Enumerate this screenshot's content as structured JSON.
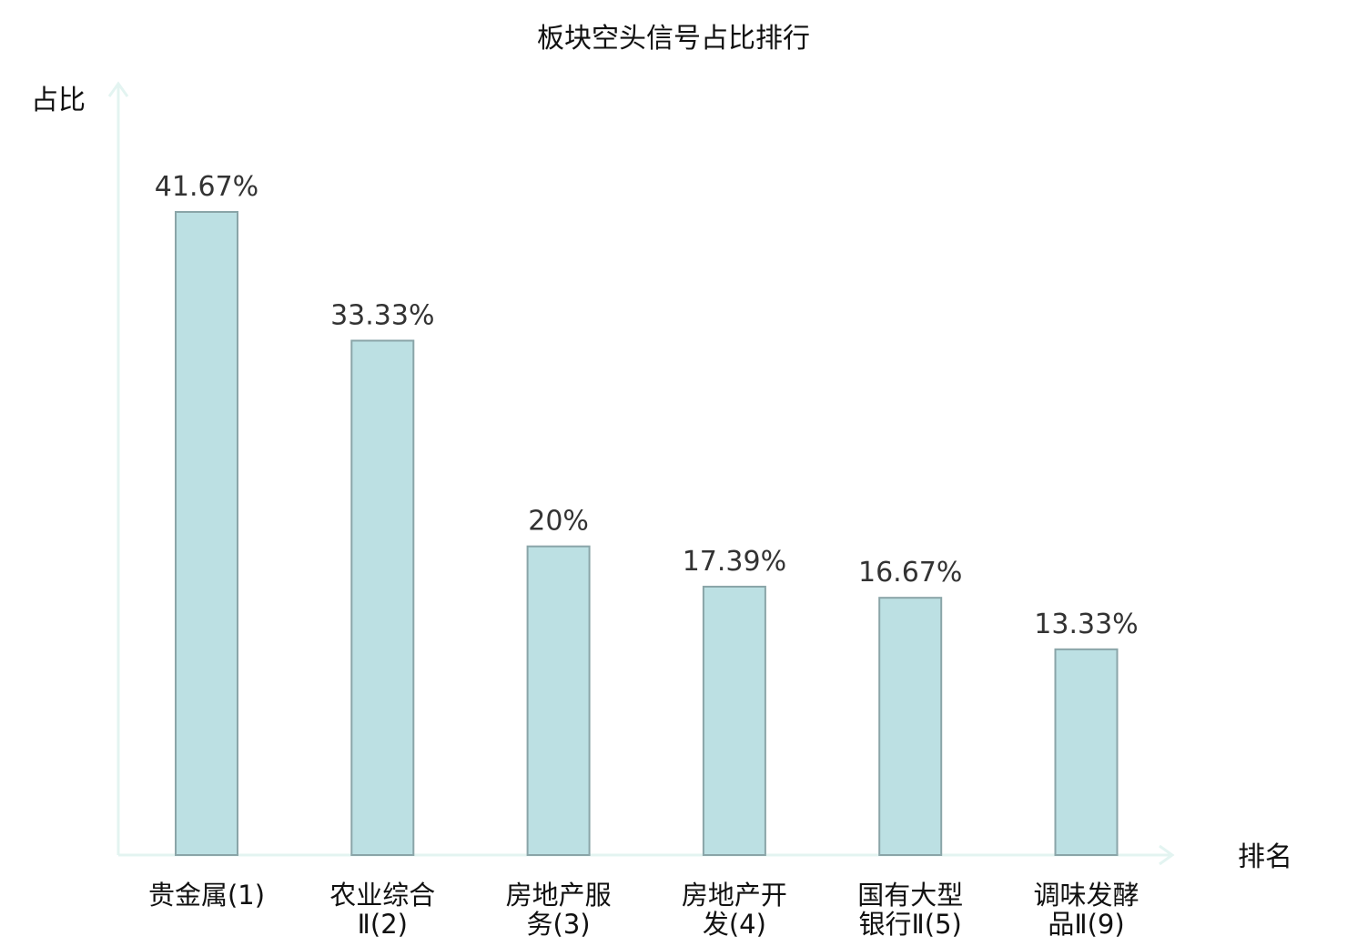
{
  "chart_data": {
    "type": "bar",
    "title": "板块空头信号占比排行",
    "ylabel": "占比",
    "xlabel": "排名",
    "ylim": [
      0,
      50
    ],
    "grid": false,
    "categories": [
      {
        "lines": [
          "贵金属(1)"
        ],
        "highlight": false
      },
      {
        "lines": [
          "农业综合",
          "Ⅱ(2)"
        ],
        "highlight": false
      },
      {
        "lines": [
          "房地产服",
          "务(3)"
        ],
        "highlight": false
      },
      {
        "lines": [
          "房地产开",
          "发(4)"
        ],
        "highlight": false
      },
      {
        "lines": [
          "国有大型",
          "银行Ⅱ(5)"
        ],
        "highlight": false
      },
      {
        "lines": [
          "调味发酵",
          "品Ⅱ(9)"
        ],
        "highlight": true
      }
    ],
    "values": [
      41.67,
      33.33,
      20,
      17.39,
      16.67,
      13.33
    ],
    "value_labels": [
      "41.67%",
      "33.33%",
      "20%",
      "17.39%",
      "16.67%",
      "13.33%"
    ],
    "colors": {
      "bar_fill": "#bce0e3",
      "bar_stroke": "#8aa5a8",
      "axis": "#e3f4f1",
      "highlight_text": "#e00000",
      "text": "#111111",
      "value_text": "#333333"
    }
  }
}
